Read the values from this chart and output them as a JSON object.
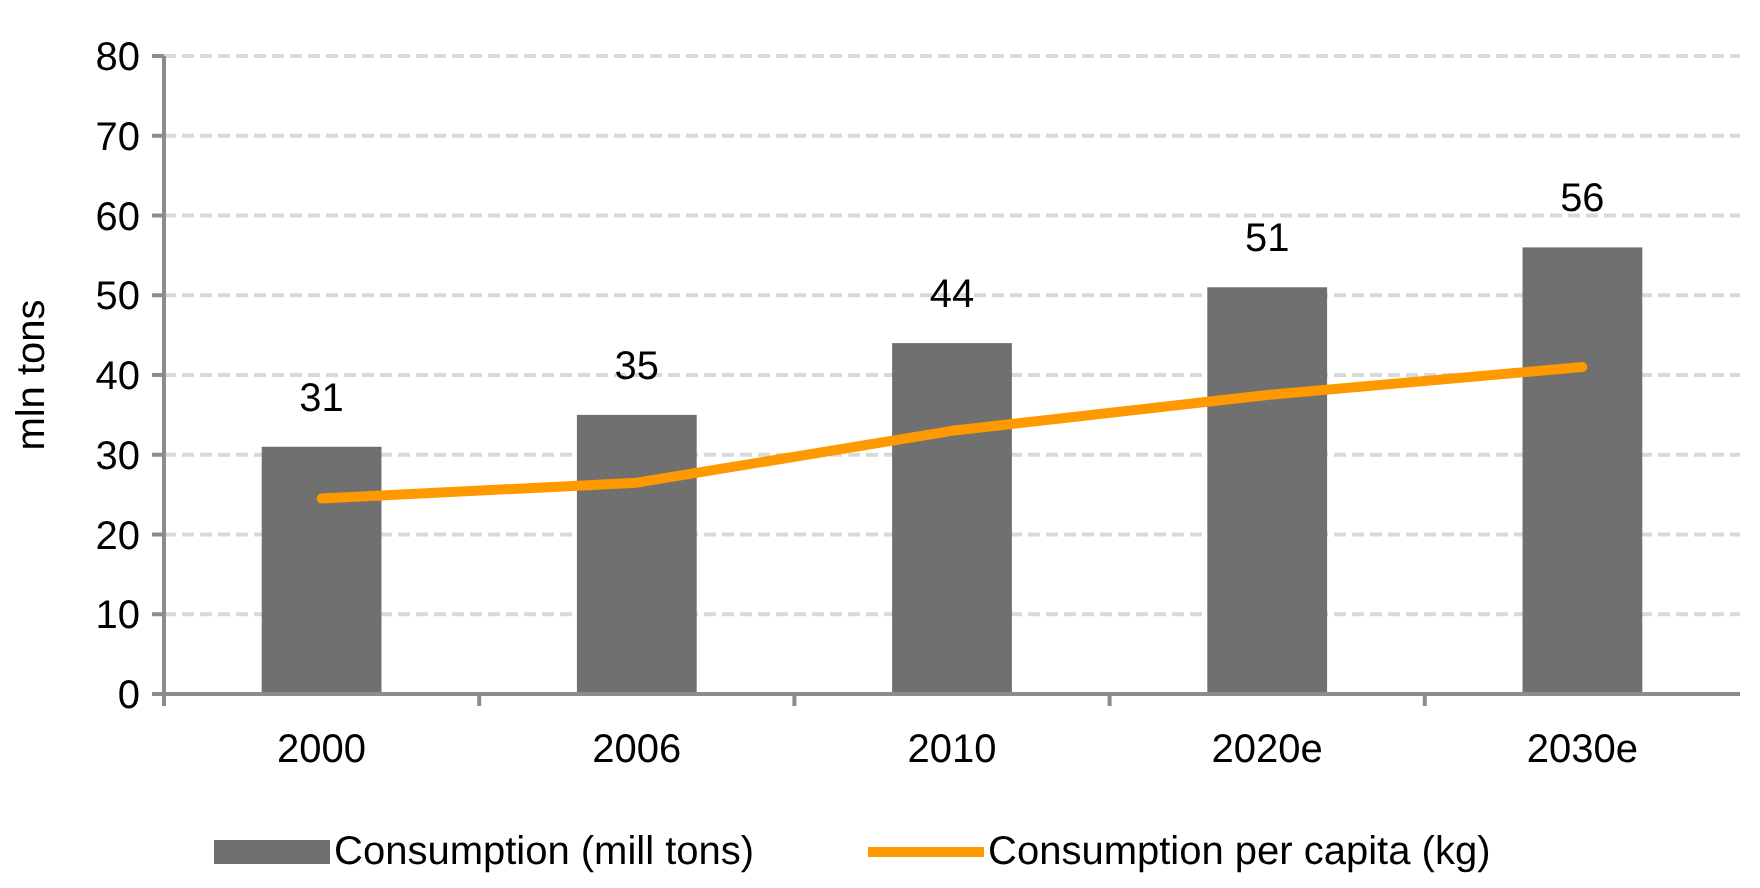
{
  "chart_data": {
    "type": "bar",
    "ylabel": "mln tons",
    "categories": [
      "2000",
      "2006",
      "2010",
      "2020e",
      "2030e"
    ],
    "series": [
      {
        "name": "Consumption (mill tons)",
        "color": "#707070",
        "values": [
          31,
          35,
          44,
          51,
          56
        ],
        "value_labels": [
          "31",
          "35",
          "44",
          "51",
          "56"
        ]
      },
      {
        "name": "Consumption per capita (kg)",
        "type": "line",
        "color": "#ff9900",
        "values": [
          24.5,
          26.5,
          33,
          37.5,
          41
        ]
      }
    ],
    "ylim": [
      0,
      80
    ],
    "yticks": [
      0,
      10,
      20,
      30,
      40,
      50,
      60,
      70,
      80
    ],
    "grid": "y",
    "legend": "bottom",
    "marker": "none"
  }
}
